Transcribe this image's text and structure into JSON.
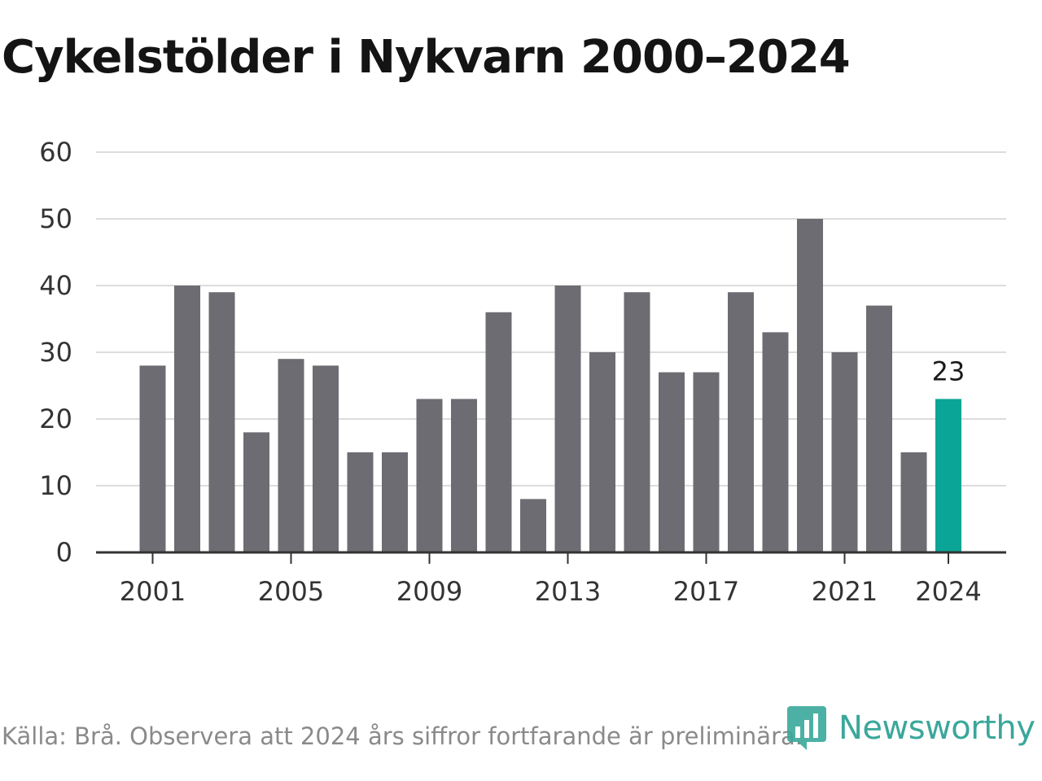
{
  "title": "Cykelstölder i Nykvarn 2000–2024",
  "source": "Källa: Brå. Observera att 2024 års siffror fortfarande är preliminära.",
  "brand": {
    "name": "Newsworthy",
    "icon": "newsworthy-logo-icon",
    "color": "#3aa79a"
  },
  "chart_data": {
    "type": "bar",
    "title": "Cykelstölder i Nykvarn 2000–2024",
    "xlabel": "",
    "ylabel": "",
    "categories": [
      "2001",
      "2002",
      "2003",
      "2004",
      "2005",
      "2006",
      "2007",
      "2008",
      "2009",
      "2010",
      "2011",
      "2012",
      "2013",
      "2014",
      "2015",
      "2016",
      "2017",
      "2018",
      "2019",
      "2020",
      "2021",
      "2022",
      "2023",
      "2024"
    ],
    "values": [
      28,
      40,
      39,
      18,
      29,
      28,
      15,
      15,
      23,
      23,
      36,
      8,
      40,
      30,
      39,
      27,
      27,
      39,
      33,
      50,
      30,
      37,
      15,
      23
    ],
    "x_tick_labels": [
      "2001",
      "2005",
      "2009",
      "2013",
      "2017",
      "2021",
      "2024"
    ],
    "y_ticks": [
      0,
      10,
      20,
      30,
      40,
      50,
      60
    ],
    "ylim": [
      0,
      60
    ],
    "grid": true,
    "colors": {
      "bar": "#6d6c72",
      "highlight": "#0aa596",
      "grid": "#dcdcdc",
      "axis": "#333333"
    },
    "highlight": {
      "category": "2024",
      "label": "23"
    }
  }
}
